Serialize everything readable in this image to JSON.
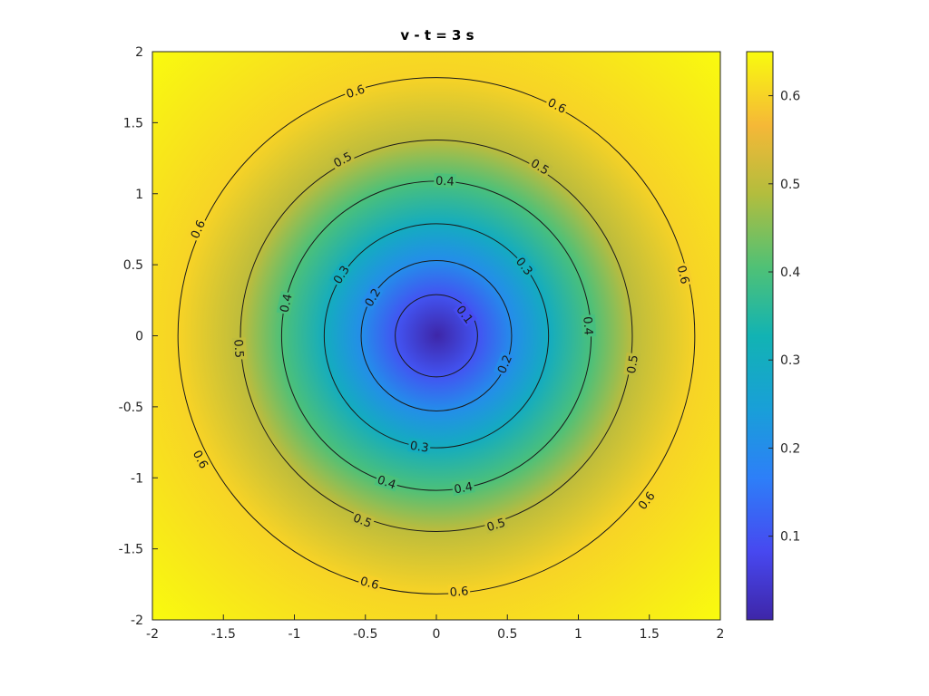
{
  "chart_data": {
    "type": "contour",
    "title": "v - t = 3 s",
    "xlabel": "",
    "ylabel": "",
    "xlim": [
      -2,
      2
    ],
    "ylim": [
      -2,
      2
    ],
    "x_ticks": [
      "-2",
      "-1.5",
      "-1",
      "-0.5",
      "0",
      "0.5",
      "1",
      "1.5",
      "2"
    ],
    "y_ticks": [
      "2",
      "1.5",
      "1",
      "0.5",
      "0",
      "-0.5",
      "-1",
      "-1.5",
      "-2"
    ],
    "colormap": "parula",
    "colorbar": {
      "clim": [
        0.005,
        0.65
      ],
      "ticks": [
        "0.6",
        "0.5",
        "0.4",
        "0.3",
        "0.2",
        "0.1"
      ]
    },
    "field": {
      "center": [
        0,
        0
      ],
      "min_value": 0.005,
      "max_value": 0.65,
      "description_values_by_radius": [
        [
          0,
          0.005
        ],
        [
          0.29,
          0.1
        ],
        [
          0.53,
          0.2
        ],
        [
          0.79,
          0.3
        ],
        [
          1.09,
          0.4
        ],
        [
          1.38,
          0.5
        ],
        [
          1.82,
          0.6
        ],
        [
          2.83,
          0.65
        ]
      ]
    },
    "contours": [
      {
        "level": 0.1,
        "label": "0.1",
        "radius": 0.29
      },
      {
        "level": 0.2,
        "label": "0.2",
        "radius": 0.53
      },
      {
        "level": 0.3,
        "label": "0.3",
        "radius": 0.79
      },
      {
        "level": 0.4,
        "label": "0.4",
        "radius": 1.09
      },
      {
        "level": 0.5,
        "label": "0.5",
        "radius": 1.38
      },
      {
        "level": 0.6,
        "label": "0.6",
        "radius": 1.82
      }
    ],
    "contour_labels": [
      {
        "text": "0.1",
        "x": 0.2,
        "y": 0.15
      },
      {
        "text": "0.2",
        "x": -0.45,
        "y": 0.27
      },
      {
        "text": "0.2",
        "x": 0.48,
        "y": -0.2
      },
      {
        "text": "0.3",
        "x": -0.67,
        "y": 0.43
      },
      {
        "text": "0.3",
        "x": 0.62,
        "y": 0.49
      },
      {
        "text": "0.3",
        "x": -0.12,
        "y": -0.78
      },
      {
        "text": "0.4",
        "x": -1.06,
        "y": 0.23
      },
      {
        "text": "0.4",
        "x": 0.06,
        "y": 1.09
      },
      {
        "text": "0.4",
        "x": 1.07,
        "y": 0.07
      },
      {
        "text": "0.4",
        "x": -0.35,
        "y": -1.03
      },
      {
        "text": "0.4",
        "x": 0.19,
        "y": -1.07
      },
      {
        "text": "0.5",
        "x": -0.66,
        "y": 1.24
      },
      {
        "text": "0.5",
        "x": 0.73,
        "y": 1.19
      },
      {
        "text": "0.5",
        "x": -1.39,
        "y": -0.09
      },
      {
        "text": "0.5",
        "x": 1.38,
        "y": -0.2
      },
      {
        "text": "0.5",
        "x": -0.52,
        "y": -1.3
      },
      {
        "text": "0.5",
        "x": 0.42,
        "y": -1.33
      },
      {
        "text": "0.6",
        "x": -0.57,
        "y": 1.72
      },
      {
        "text": "0.6",
        "x": 0.85,
        "y": 1.62
      },
      {
        "text": "0.6",
        "x": -1.68,
        "y": 0.75
      },
      {
        "text": "0.6",
        "x": 1.74,
        "y": 0.43
      },
      {
        "text": "0.6",
        "x": -1.66,
        "y": -0.87
      },
      {
        "text": "0.6",
        "x": 1.48,
        "y": -1.16
      },
      {
        "text": "0.6",
        "x": -0.47,
        "y": -1.74
      },
      {
        "text": "0.6",
        "x": 0.16,
        "y": -1.8
      }
    ]
  }
}
